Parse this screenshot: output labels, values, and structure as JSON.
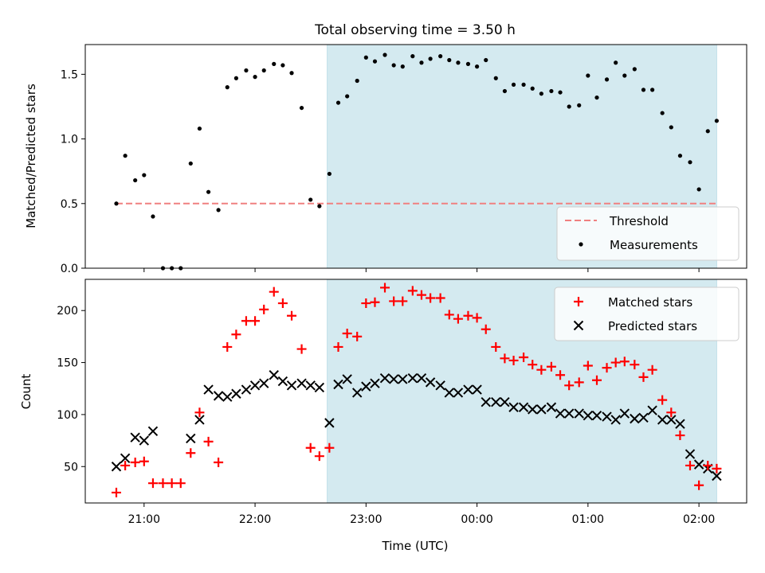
{
  "chart_data": {
    "title": "Total observing time = 3.50 h",
    "xlabel": "Time (UTC)",
    "x_units": "hours since 00:00 UTC of the first date (negative = before midnight)",
    "xlim": [
      -3.53,
      2.43
    ],
    "shaded_interval": [
      -1.35,
      2.16
    ],
    "shaded_color": "#d4eaf0",
    "x_ticks": [
      {
        "value": -3,
        "label": "21:00"
      },
      {
        "value": -2,
        "label": "22:00"
      },
      {
        "value": -1,
        "label": "23:00"
      },
      {
        "value": 0,
        "label": "00:00"
      },
      {
        "value": 1,
        "label": "01:00"
      },
      {
        "value": 2,
        "label": "02:00"
      }
    ],
    "x_times": [
      -3.25,
      -3.17,
      -3.08,
      -3.0,
      -2.92,
      -2.83,
      -2.75,
      -2.67,
      -2.58,
      -2.5,
      -2.42,
      -2.33,
      -2.25,
      -2.17,
      -2.08,
      -2.0,
      -1.92,
      -1.83,
      -1.75,
      -1.67,
      -1.58,
      -1.5,
      -1.42,
      -1.33,
      -1.25,
      -1.17,
      -1.08,
      -1.0,
      -0.92,
      -0.83,
      -0.75,
      -0.67,
      -0.58,
      -0.5,
      -0.42,
      -0.33,
      -0.25,
      -0.17,
      -0.08,
      0.0,
      0.08,
      0.17,
      0.25,
      0.33,
      0.42,
      0.5,
      0.58,
      0.67,
      0.75,
      0.83,
      0.92,
      1.0,
      1.08,
      1.17,
      1.25,
      1.33,
      1.42,
      1.5,
      1.58,
      1.67,
      1.75,
      1.83,
      1.92,
      2.0,
      2.08,
      2.16
    ],
    "panels": [
      {
        "type": "scatter",
        "ylabel": "Matched/Predicted stars",
        "ylim": [
          0,
          1.73
        ],
        "y_ticks": [
          0.0,
          0.5,
          1.0,
          1.5
        ],
        "y_tick_labels": [
          "0.0",
          "0.5",
          "1.0",
          "1.5"
        ],
        "threshold": {
          "name": "Threshold",
          "value": 0.5,
          "color": "#f08080",
          "style": "dashed"
        },
        "series": [
          {
            "name": "Measurements",
            "marker": "dot",
            "color": "#000000",
            "values": [
              0.5,
              0.87,
              0.68,
              0.72,
              0.4,
              0.0,
              0.0,
              0.0,
              0.81,
              1.08,
              0.59,
              0.45,
              1.4,
              1.47,
              1.53,
              1.48,
              1.53,
              1.58,
              1.57,
              1.51,
              1.24,
              0.53,
              0.48,
              0.73,
              1.28,
              1.33,
              1.45,
              1.63,
              1.6,
              1.65,
              1.57,
              1.56,
              1.64,
              1.59,
              1.62,
              1.64,
              1.61,
              1.59,
              1.58,
              1.56,
              1.61,
              1.47,
              1.37,
              1.42,
              1.42,
              1.39,
              1.35,
              1.37,
              1.36,
              1.25,
              1.26,
              1.49,
              1.32,
              1.46,
              1.59,
              1.49,
              1.54,
              1.38,
              1.38,
              1.2,
              1.09,
              0.87,
              0.82,
              0.61,
              1.06,
              1.14
            ]
          }
        ],
        "legend": {
          "position": "lower right",
          "entries": [
            "Threshold",
            "Measurements"
          ]
        }
      },
      {
        "type": "scatter",
        "ylabel": "Count",
        "ylim": [
          15,
          230
        ],
        "y_ticks": [
          50,
          100,
          150,
          200
        ],
        "y_tick_labels": [
          "50",
          "100",
          "150",
          "200"
        ],
        "series": [
          {
            "name": "Matched stars",
            "marker": "plus",
            "color": "#ff0000",
            "values": [
              25,
              51,
              54,
              55,
              34,
              34,
              34,
              34,
              63,
              102,
              74,
              54,
              165,
              177,
              190,
              190,
              201,
              218,
              207,
              195,
              163,
              68,
              60,
              68,
              165,
              178,
              175,
              207,
              208,
              222,
              209,
              209,
              219,
              215,
              212,
              212,
              196,
              192,
              195,
              193,
              182,
              165,
              154,
              152,
              155,
              148,
              143,
              146,
              138,
              128,
              131,
              147,
              133,
              145,
              150,
              151,
              148,
              136,
              143,
              114,
              102,
              80,
              51,
              32,
              51,
              48
            ]
          },
          {
            "name": "Predicted stars",
            "marker": "x",
            "color": "#000000",
            "values": [
              50,
              58,
              78,
              75,
              84,
              null,
              null,
              null,
              77,
              95,
              124,
              118,
              117,
              120,
              124,
              128,
              130,
              138,
              132,
              128,
              130,
              128,
              126,
              92,
              129,
              134,
              121,
              127,
              130,
              135,
              134,
              134,
              135,
              135,
              131,
              128,
              121,
              121,
              124,
              124,
              112,
              112,
              112,
              107,
              107,
              105,
              105,
              107,
              101,
              101,
              101,
              99,
              99,
              98,
              95,
              101,
              96,
              97,
              104,
              95,
              95,
              91,
              62,
              52,
              48,
              41
            ]
          }
        ],
        "legend": {
          "position": "upper right",
          "entries": [
            "Matched stars",
            "Predicted stars"
          ]
        }
      }
    ]
  }
}
